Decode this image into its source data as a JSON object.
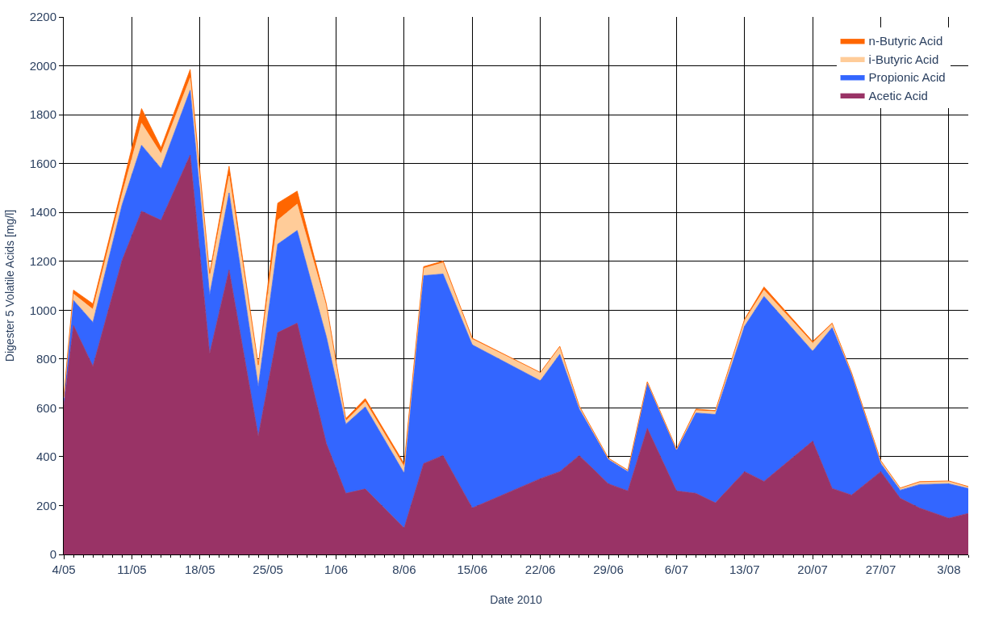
{
  "chart_data": {
    "type": "area",
    "stacked": true,
    "xlabel": "Date 2010",
    "ylabel": "Digester 5 Volatile Acids [mg/l]",
    "x": [
      "2010-05-04",
      "2010-05-05",
      "2010-05-07",
      "2010-05-10",
      "2010-05-12",
      "2010-05-14",
      "2010-05-17",
      "2010-05-19",
      "2010-05-21",
      "2010-05-24",
      "2010-05-26",
      "2010-05-28",
      "2010-05-31",
      "2010-06-02",
      "2010-06-04",
      "2010-06-08",
      "2010-06-10",
      "2010-06-12",
      "2010-06-15",
      "2010-06-22",
      "2010-06-24",
      "2010-06-26",
      "2010-06-29",
      "2010-07-01",
      "2010-07-03",
      "2010-07-06",
      "2010-07-08",
      "2010-07-10",
      "2010-07-13",
      "2010-07-15",
      "2010-07-20",
      "2010-07-22",
      "2010-07-24",
      "2010-07-27",
      "2010-07-29",
      "2010-07-31",
      "2010-08-03",
      "2010-08-05"
    ],
    "series": [
      {
        "name": "Acetic Acid",
        "color": "#993366",
        "values": [
          610,
          937,
          770,
          1204,
          1405,
          1368,
          1635,
          822,
          1164,
          484,
          908,
          947,
          454,
          250,
          268,
          108,
          372,
          405,
          190,
          310,
          339,
          405,
          289,
          260,
          516,
          260,
          250,
          211,
          339,
          299,
          464,
          270,
          243,
          339,
          230,
          190,
          148,
          168
        ]
      },
      {
        "name": "Propionic Acid",
        "color": "#3366ff",
        "values": [
          20,
          103,
          180,
          227,
          270,
          212,
          265,
          240,
          316,
          203,
          362,
          379,
          437,
          283,
          336,
          224,
          769,
          743,
          668,
          401,
          480,
          190,
          99,
          79,
          184,
          165,
          329,
          362,
          595,
          757,
          368,
          658,
          494,
          33,
          33,
          96,
          141,
          102
        ]
      },
      {
        "name": "i-Butyric Acid",
        "color": "#ffcc99",
        "values": [
          10,
          26,
          53,
          43,
          90,
          60,
          50,
          73,
          69,
          79,
          98,
          108,
          125,
          13,
          21,
          27,
          30,
          46,
          23,
          32,
          30,
          10,
          4,
          4,
          5,
          5,
          10,
          12,
          23,
          26,
          33,
          16,
          5,
          10,
          7,
          10,
          10,
          6
        ]
      },
      {
        "name": "n-Butyric Acid",
        "color": "#ff6600",
        "values": [
          5,
          16,
          23,
          29,
          60,
          25,
          35,
          16,
          40,
          10,
          70,
          53,
          10,
          10,
          13,
          13,
          7,
          7,
          4,
          2,
          3,
          3,
          2,
          2,
          2,
          2,
          6,
          4,
          6,
          13,
          7,
          3,
          2,
          2,
          2,
          2,
          2,
          2
        ]
      }
    ],
    "xlim": [
      "2010-05-04",
      "2010-08-05"
    ],
    "xticks": [
      {
        "value": "2010-05-04",
        "label": "4/05"
      },
      {
        "value": "2010-05-11",
        "label": "11/05"
      },
      {
        "value": "2010-05-18",
        "label": "18/05"
      },
      {
        "value": "2010-05-25",
        "label": "25/05"
      },
      {
        "value": "2010-06-01",
        "label": "1/06"
      },
      {
        "value": "2010-06-08",
        "label": "8/06"
      },
      {
        "value": "2010-06-15",
        "label": "15/06"
      },
      {
        "value": "2010-06-22",
        "label": "22/06"
      },
      {
        "value": "2010-06-29",
        "label": "29/06"
      },
      {
        "value": "2010-07-06",
        "label": "6/07"
      },
      {
        "value": "2010-07-13",
        "label": "13/07"
      },
      {
        "value": "2010-07-20",
        "label": "20/07"
      },
      {
        "value": "2010-07-27",
        "label": "27/07"
      },
      {
        "value": "2010-08-03",
        "label": "3/08"
      }
    ],
    "ylim": [
      0,
      2200
    ],
    "yticks": [
      0,
      200,
      400,
      600,
      800,
      1000,
      1200,
      1400,
      1600,
      1800,
      2000,
      2200
    ],
    "grid": true,
    "legend": "top right"
  }
}
